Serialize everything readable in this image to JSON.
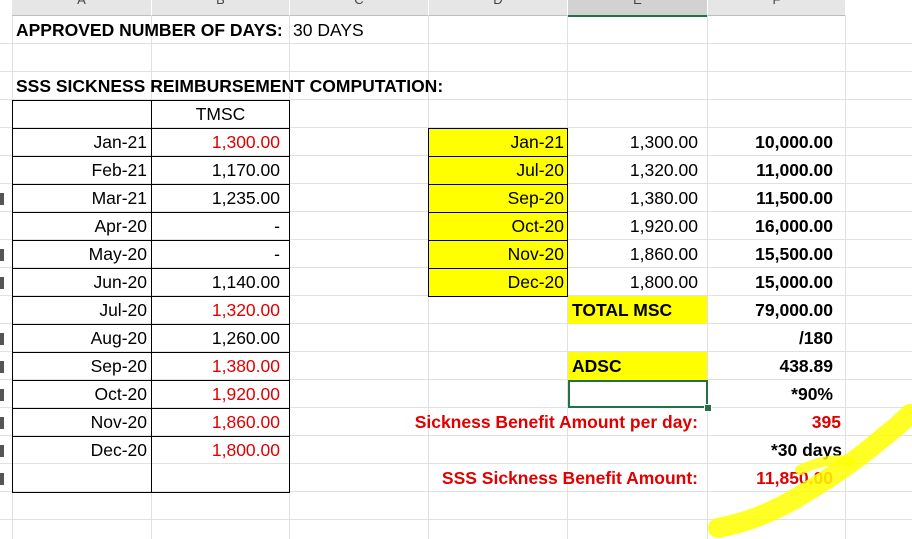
{
  "columns": [
    "A",
    "B",
    "C",
    "D",
    "E",
    "F"
  ],
  "selected_column": "E",
  "approved": {
    "label": "APPROVED NUMBER OF DAYS:",
    "value": "30 DAYS"
  },
  "section_title": "SSS SICKNESS REIMBURSEMENT COMPUTATION:",
  "left_table": {
    "header": "TMSC",
    "rows": [
      {
        "month": "Jan-21",
        "amount": "1,300.00",
        "highlight": true
      },
      {
        "month": "Feb-21",
        "amount": "1,170.00",
        "highlight": false
      },
      {
        "month": "Mar-21",
        "amount": "1,235.00",
        "highlight": false
      },
      {
        "month": "Apr-20",
        "amount": "-",
        "highlight": false
      },
      {
        "month": "May-20",
        "amount": "-",
        "highlight": false
      },
      {
        "month": "Jun-20",
        "amount": "1,140.00",
        "highlight": false
      },
      {
        "month": "Jul-20",
        "amount": "1,320.00",
        "highlight": true
      },
      {
        "month": "Aug-20",
        "amount": "1,260.00",
        "highlight": false
      },
      {
        "month": "Sep-20",
        "amount": "1,380.00",
        "highlight": true
      },
      {
        "month": "Oct-20",
        "amount": "1,920.00",
        "highlight": true
      },
      {
        "month": "Nov-20",
        "amount": "1,860.00",
        "highlight": true
      },
      {
        "month": "Dec-20",
        "amount": "1,800.00",
        "highlight": true
      }
    ]
  },
  "right_table": {
    "rows": [
      {
        "month": "Jan-21",
        "contribution": "1,300.00",
        "msc": "10,000.00"
      },
      {
        "month": "Jul-20",
        "contribution": "1,320.00",
        "msc": "11,000.00"
      },
      {
        "month": "Sep-20",
        "contribution": "1,380.00",
        "msc": "11,500.00"
      },
      {
        "month": "Oct-20",
        "contribution": "1,920.00",
        "msc": "16,000.00"
      },
      {
        "month": "Nov-20",
        "contribution": "1,860.00",
        "msc": "15,500.00"
      },
      {
        "month": "Dec-20",
        "contribution": "1,800.00",
        "msc": "15,000.00"
      }
    ]
  },
  "summary": {
    "total_msc_label": "TOTAL MSC",
    "total_msc_value": "79,000.00",
    "divisor": "/180",
    "adsc_label": "ADSC",
    "adsc_value": "438.89",
    "rate": "*90%",
    "daily_label": "Sickness Benefit Amount per day:",
    "daily_value": "395",
    "days": "*30 days",
    "total_label": "SSS Sickness Benefit Amount:",
    "total_value": "11,850.00"
  },
  "colors": {
    "highlight_yellow": "#ffff00",
    "red_text": "#e00000",
    "selection_green": "#217346"
  }
}
